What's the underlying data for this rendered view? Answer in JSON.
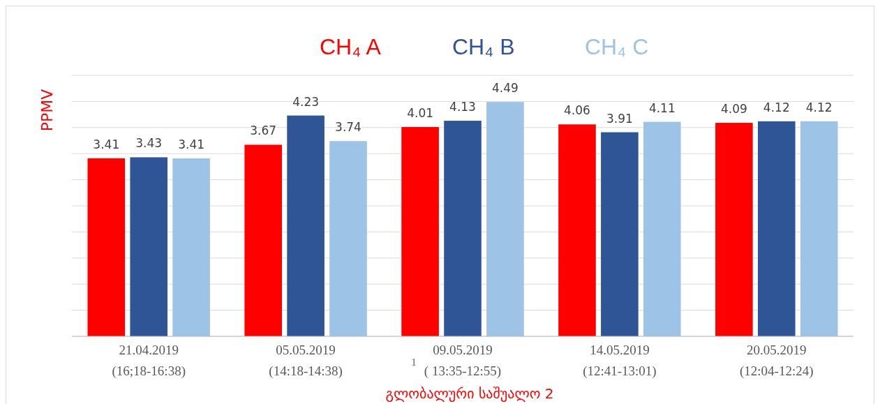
{
  "chart_data": {
    "type": "bar",
    "ylabel": "PPMV",
    "xlabel": "გლობალური საშუალო  2",
    "categories": [
      "21.04.2019\n(16;18-16:38)",
      "05.05.2019\n(14:18-14:38)",
      "09.05.2019\n( 13:35-12:55)",
      "14.05.2019\n(12:41-13:01)",
      "20.05.2019\n(12:04-12:24)"
    ],
    "series": [
      {
        "name": "CH₄  A",
        "color": "#ff0000",
        "values": [
          3.41,
          3.67,
          4.01,
          4.06,
          4.09
        ]
      },
      {
        "name": "CH₄  B",
        "color": "#2f5597",
        "values": [
          3.43,
          4.23,
          4.13,
          3.91,
          4.12
        ]
      },
      {
        "name": "CH₄  C",
        "color": "#9dc3e6",
        "values": [
          3.41,
          3.74,
          4.49,
          4.11,
          4.12
        ]
      }
    ],
    "ylim": [
      0,
      5
    ],
    "yticks": [
      {
        "value": 0,
        "label": null
      },
      {
        "value": 0.5,
        "label": null
      },
      {
        "value": 1,
        "label": null
      },
      {
        "value": 1.5,
        "label": null
      },
      {
        "value": 2,
        "label": null
      },
      {
        "value": 2.5,
        "label": null
      },
      {
        "value": 3,
        "label": null
      },
      {
        "value": 3.5,
        "label": null
      },
      {
        "value": 4,
        "label": null
      },
      {
        "value": 4.5,
        "label": null
      },
      {
        "value": 5,
        "label": null
      }
    ],
    "grid": "y",
    "tick_labels": "x",
    "legend": "top",
    "data_labels": true,
    "annotations": [
      "1"
    ]
  }
}
